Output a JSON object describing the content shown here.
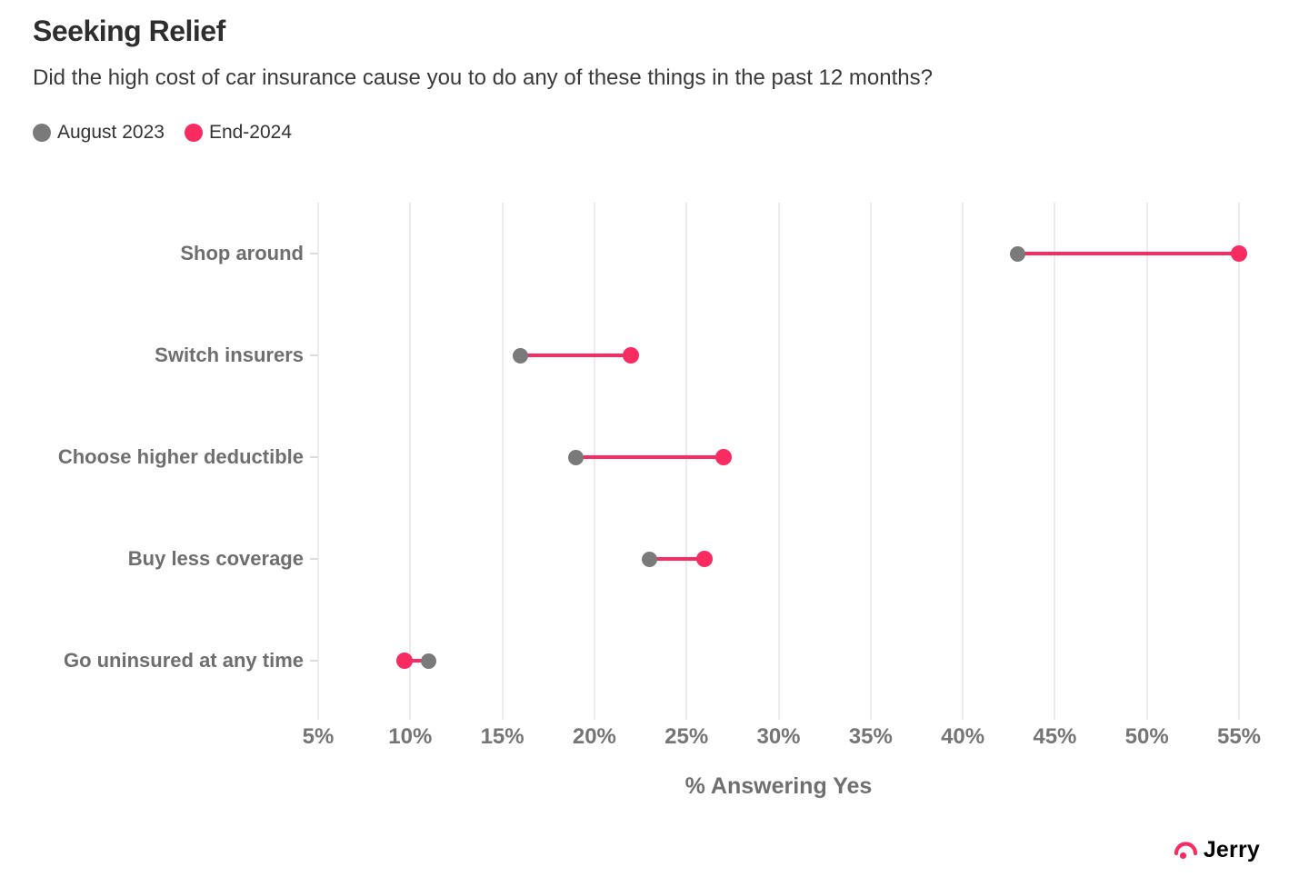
{
  "header": {
    "title": "Seeking Relief",
    "subtitle": "Did the high cost of car insurance cause you to do any of these things in the past 12 months?"
  },
  "legend": {
    "items": [
      {
        "label": "August 2023",
        "color": "#7a7a7a"
      },
      {
        "label": "End-2024",
        "color": "#f92c62"
      }
    ]
  },
  "chart_data": {
    "type": "dumbbell",
    "categories": [
      "Shop around",
      "Switch insurers",
      "Choose higher deductible",
      "Buy less coverage",
      "Go uninsured at any time"
    ],
    "series": [
      {
        "name": "August 2023",
        "color": "#7a7a7a",
        "values": [
          43,
          16,
          19,
          23,
          11
        ]
      },
      {
        "name": "End-2024",
        "color": "#f92c62",
        "values": [
          55,
          22,
          27,
          26,
          9.7
        ]
      }
    ],
    "title": "Seeking Relief",
    "xlabel": "% Answering Yes",
    "ylabel": "",
    "x_ticks": [
      5,
      10,
      15,
      20,
      25,
      30,
      35,
      40,
      45,
      50,
      55
    ],
    "x_tick_suffix": "%",
    "xlim": [
      5,
      55
    ],
    "grid": "vertical",
    "legend_position": "top-left",
    "connector_color": "#f92c62"
  },
  "colors": {
    "accent_pink": "#f92c62",
    "neutral_gray": "#7a7a7a",
    "gridline": "#ececec"
  },
  "footer": {
    "brand": "Jerry"
  }
}
